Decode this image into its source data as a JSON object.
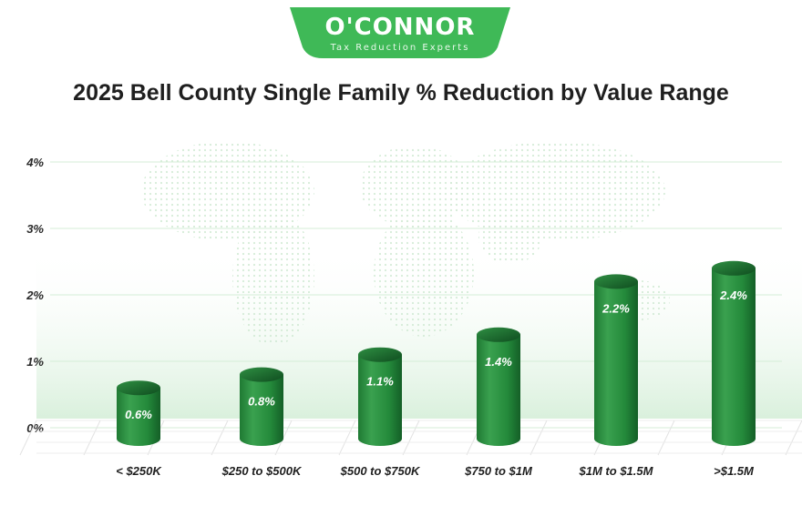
{
  "brand": {
    "name": "O'CONNOR",
    "tagline": "Tax Reduction Experts"
  },
  "colors": {
    "brand_green": "#3fb957",
    "bar_light": "#3aa14f",
    "bar_dark": "#145f27"
  },
  "chart_data": {
    "type": "bar",
    "title": "2025 Bell County Single Family % Reduction by Value Range",
    "categories": [
      "< $250K",
      "$250 to $500K",
      "$500 to $750K",
      "$750 to $1M",
      "$1M to $1.5M",
      ">$1.5M"
    ],
    "values": [
      0.6,
      0.8,
      1.1,
      1.4,
      2.2,
      2.4
    ],
    "value_labels": [
      "0.6%",
      "0.8%",
      "1.1%",
      "1.4%",
      "2.2%",
      "2.4%"
    ],
    "y_ticks": [
      0,
      1,
      2,
      3,
      4
    ],
    "y_tick_labels": [
      "0%",
      "1%",
      "2%",
      "3%",
      "4%"
    ],
    "ylim": [
      0,
      4
    ],
    "xlabel": "",
    "ylabel": "",
    "grid": true
  }
}
